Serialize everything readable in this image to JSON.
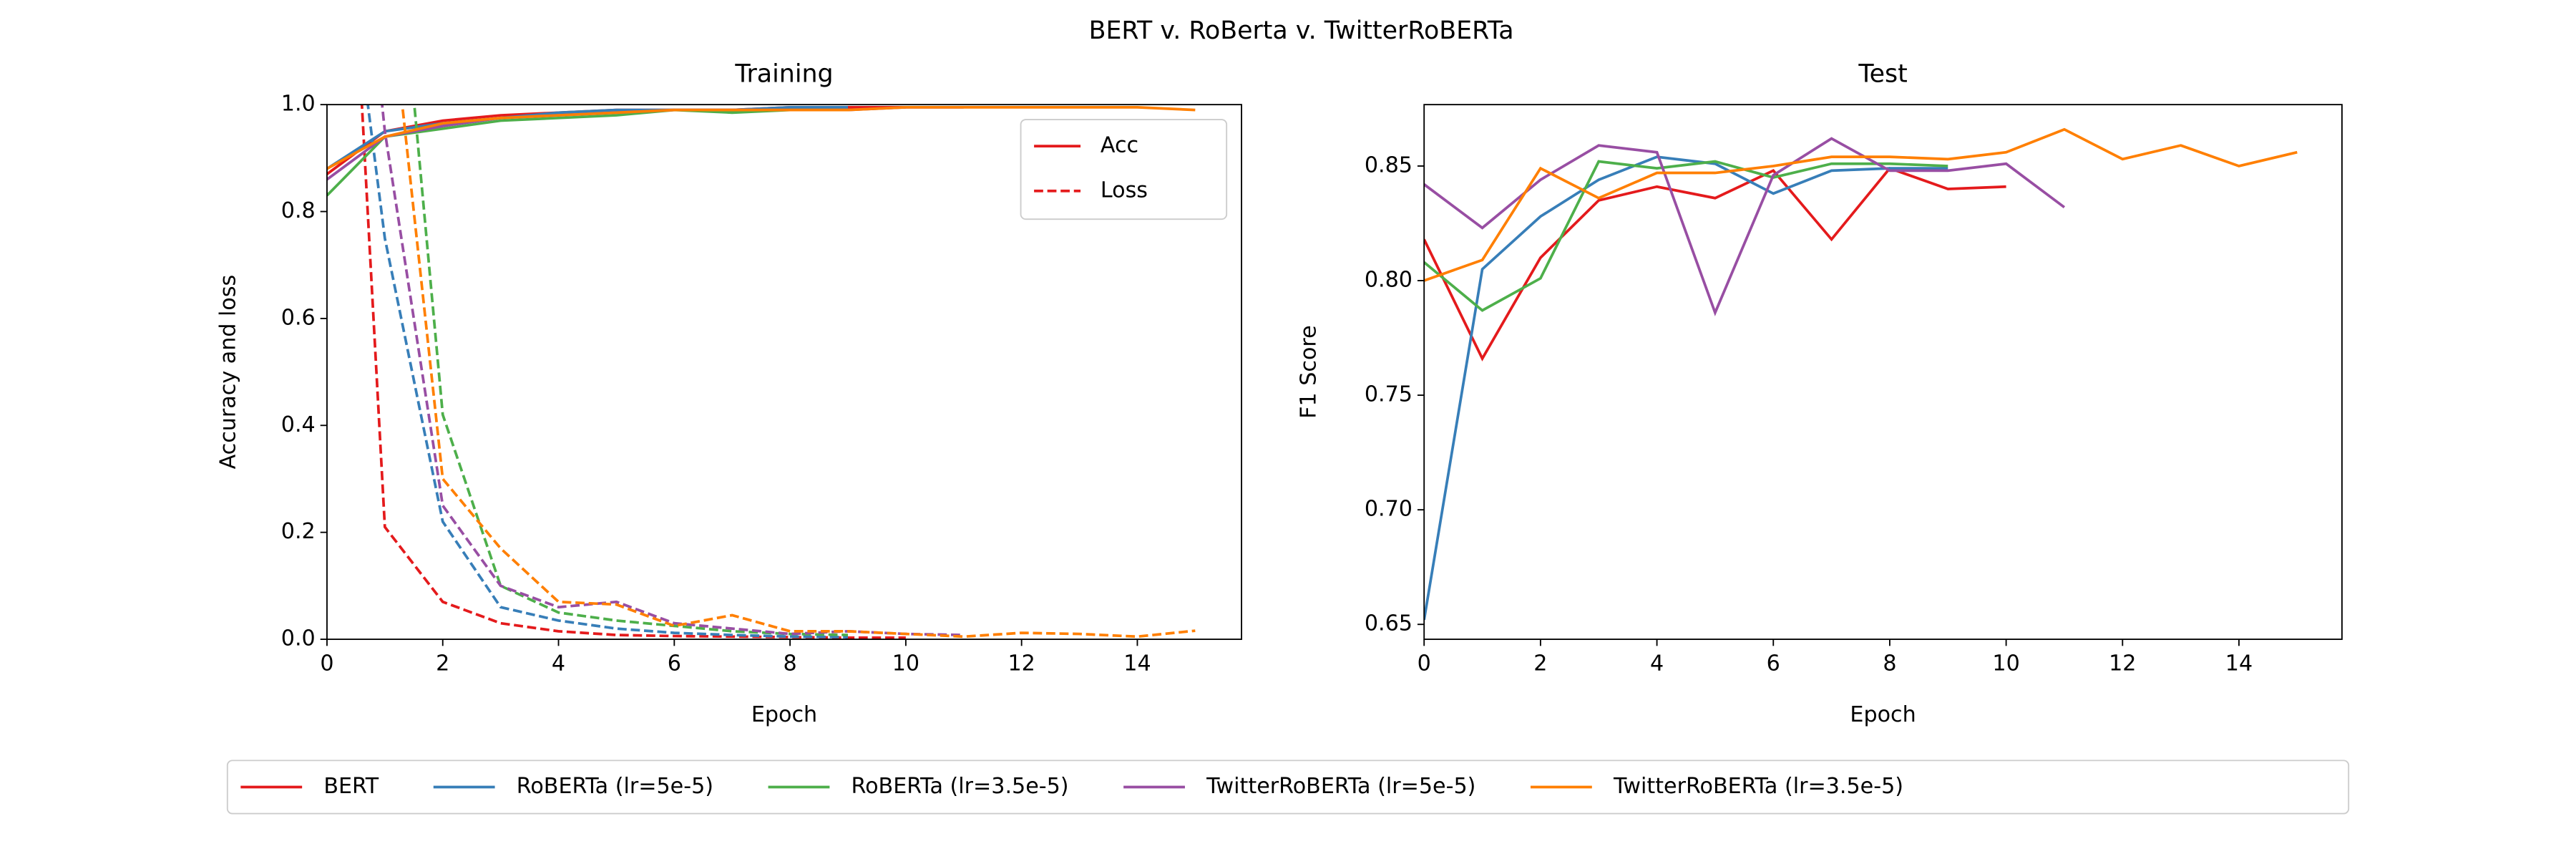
{
  "suptitle": "BERT v. RoBerta v. TwitterRoBERTa",
  "chart_data": [
    {
      "type": "line",
      "title": "Training",
      "xlabel": "Epoch",
      "ylabel": "Accuracy and loss",
      "x": [
        0,
        1,
        2,
        3,
        4,
        5,
        6,
        7,
        8,
        9,
        10,
        11,
        12,
        13,
        14,
        15
      ],
      "xlim": [
        0,
        15.8
      ],
      "ylim": [
        0,
        1
      ],
      "xticks": [
        0,
        2,
        4,
        6,
        8,
        10,
        12,
        14
      ],
      "yticks": [
        {
          "value": 0,
          "label": "0.0"
        },
        0.2,
        0.4,
        0.6,
        0.8,
        {
          "value": 1,
          "label": "1.0"
        }
      ],
      "legend": [
        "Acc",
        "Loss"
      ],
      "legend_loc": "upper right",
      "series": [
        {
          "name": "BERT",
          "color": "#e41a1c",
          "values": [
            0.87,
            0.95,
            0.97,
            0.98,
            0.985,
            0.99,
            0.99,
            0.99,
            0.995,
            0.995,
            0.995,
            null,
            null,
            null,
            null,
            null
          ],
          "loss": [
            2.2,
            0.21,
            0.07,
            0.03,
            0.015,
            0.008,
            0.006,
            0.005,
            0.004,
            0.003,
            0.003,
            null,
            null,
            null,
            null,
            null
          ]
        },
        {
          "name": "RoBERTa (lr=5e-5)",
          "color": "#377eb8",
          "values": [
            0.88,
            0.95,
            0.965,
            0.975,
            0.985,
            0.99,
            0.99,
            0.99,
            0.995,
            0.995,
            null,
            null,
            null,
            null,
            null,
            null
          ],
          "loss": [
            1.6,
            0.75,
            0.22,
            0.06,
            0.035,
            0.02,
            0.012,
            0.008,
            0.005,
            0.004,
            null,
            null,
            null,
            null,
            null,
            null
          ]
        },
        {
          "name": "RoBERTa (lr=3.5e-5)",
          "color": "#4daf4a",
          "values": [
            0.83,
            0.94,
            0.955,
            0.97,
            0.975,
            0.98,
            0.99,
            0.985,
            0.99,
            0.99,
            null,
            null,
            null,
            null,
            null,
            null
          ],
          "loss": [
            2.8,
            1.6,
            0.42,
            0.1,
            0.05,
            0.035,
            0.025,
            0.015,
            0.01,
            0.008,
            null,
            null,
            null,
            null,
            null,
            null
          ]
        },
        {
          "name": "TwitterRoBERTa (lr=5e-5)",
          "color": "#984ea3",
          "values": [
            0.86,
            0.94,
            0.96,
            0.975,
            0.98,
            0.985,
            0.99,
            0.99,
            0.99,
            0.99,
            0.995,
            0.995,
            null,
            null,
            null,
            null
          ],
          "loss": [
            2.0,
            0.95,
            0.25,
            0.1,
            0.06,
            0.07,
            0.03,
            0.02,
            0.01,
            0.015,
            0.01,
            0.008,
            null,
            null,
            null,
            null
          ]
        },
        {
          "name": "TwitterRoBERTa (lr=3.5e-5)",
          "color": "#ff7f00",
          "values": [
            0.88,
            0.94,
            0.965,
            0.975,
            0.98,
            0.985,
            0.99,
            0.99,
            0.99,
            0.99,
            0.995,
            0.995,
            0.995,
            0.995,
            0.995,
            0.99
          ],
          "loss": [
            2.5,
            1.3,
            0.3,
            0.17,
            0.07,
            0.065,
            0.025,
            0.045,
            0.015,
            0.015,
            0.01,
            0.005,
            0.012,
            0.01,
            0.005,
            0.016
          ]
        }
      ]
    },
    {
      "type": "line",
      "title": "Test",
      "xlabel": "Epoch",
      "ylabel": "F1 Score",
      "x": [
        0,
        1,
        2,
        3,
        4,
        5,
        6,
        7,
        8,
        9,
        10,
        11,
        12,
        13,
        14,
        15
      ],
      "xlim": [
        0,
        15.77
      ],
      "ylim": [
        0.6435,
        0.8768
      ],
      "xticks": [
        0,
        2,
        4,
        6,
        8,
        10,
        12,
        14
      ],
      "yticks": [
        0.65,
        {
          "value": 0.7,
          "label": "0.70"
        },
        0.75,
        {
          "value": 0.8,
          "label": "0.80"
        },
        0.85
      ],
      "series": [
        {
          "name": "BERT",
          "color": "#e41a1c",
          "values": [
            0.818,
            0.766,
            0.81,
            0.835,
            0.841,
            0.836,
            0.848,
            0.818,
            0.849,
            0.84,
            0.841,
            null,
            null,
            null,
            null,
            null
          ]
        },
        {
          "name": "RoBERTa (lr=5e-5)",
          "color": "#377eb8",
          "values": [
            0.652,
            0.805,
            0.828,
            0.844,
            0.854,
            0.851,
            0.838,
            0.848,
            0.849,
            0.849,
            null,
            null,
            null,
            null,
            null,
            null
          ]
        },
        {
          "name": "RoBERTa (lr=3.5e-5)",
          "color": "#4daf4a",
          "values": [
            0.808,
            0.787,
            0.801,
            0.852,
            0.849,
            0.852,
            0.845,
            0.851,
            0.851,
            0.85,
            null,
            null,
            null,
            null,
            null,
            null
          ]
        },
        {
          "name": "TwitterRoBERTa (lr=5e-5)",
          "color": "#984ea3",
          "values": [
            0.842,
            0.823,
            0.844,
            0.859,
            0.856,
            0.786,
            0.846,
            0.862,
            0.848,
            0.848,
            0.851,
            0.832,
            null,
            null,
            null,
            null
          ]
        },
        {
          "name": "TwitterRoBERTa (lr=3.5e-5)",
          "color": "#ff7f00",
          "values": [
            0.8,
            0.809,
            0.849,
            0.836,
            0.847,
            0.847,
            0.85,
            0.854,
            0.854,
            0.853,
            0.856,
            0.866,
            0.853,
            0.859,
            0.85,
            0.856
          ]
        }
      ]
    }
  ]
}
